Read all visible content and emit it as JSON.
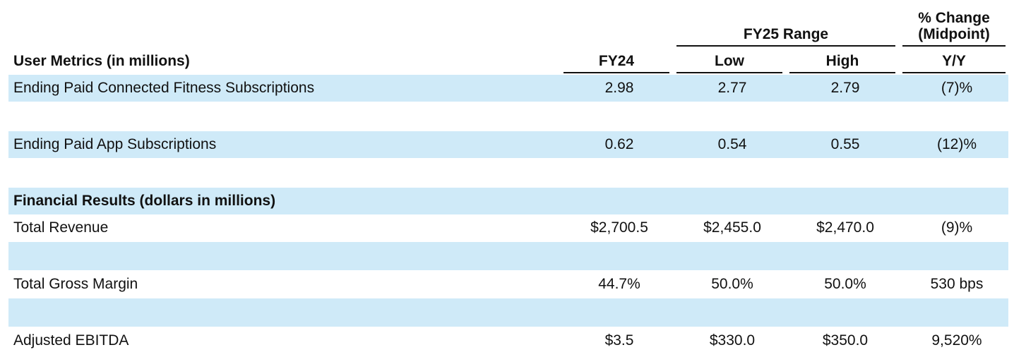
{
  "header": {
    "section_title": "User Metrics (in millions)",
    "fy24": "FY24",
    "range_title": "FY25 Range",
    "low": "Low",
    "high": "High",
    "change_line1": "% Change",
    "change_line2": "(Midpoint)",
    "yy": "Y/Y"
  },
  "rows": [
    {
      "label": "Ending Paid Connected Fitness Subscriptions",
      "fy24": "2.98",
      "low": "2.77",
      "high": "2.79",
      "change": "(7)%"
    },
    {
      "label": "Ending Paid App Subscriptions",
      "fy24": "0.62",
      "low": "0.54",
      "high": "0.55",
      "change": "(12)%"
    },
    {
      "label": "Financial Results (dollars in millions)"
    },
    {
      "label": "Total Revenue",
      "fy24": "$2,700.5",
      "low": "$2,455.0",
      "high": "$2,470.0",
      "change": "(9)%"
    },
    {
      "label": "Total Gross Margin",
      "fy24": "44.7%",
      "low": "50.0%",
      "high": "50.0%",
      "change": "530 bps"
    },
    {
      "label": "Adjusted EBITDA",
      "fy24": "$3.5",
      "low": "$330.0",
      "high": "$350.0",
      "change": "9,520%"
    }
  ],
  "colors": {
    "band": "#cfeaf8",
    "text": "#111111"
  }
}
